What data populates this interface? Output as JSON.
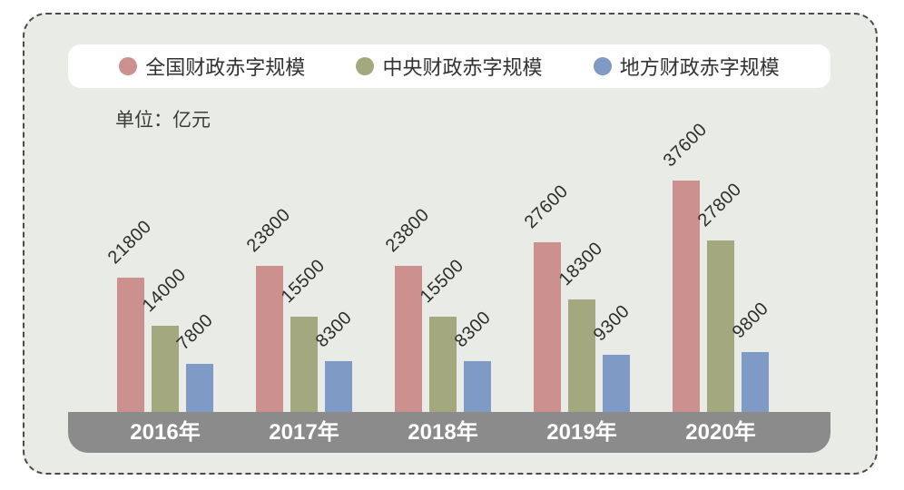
{
  "frame": {
    "background": "#e9ece6",
    "border_color": "#4a4a4a",
    "page_background": "#ffffff"
  },
  "legend": {
    "items": [
      {
        "label": "全国财政赤字规模",
        "color": "#cc918e"
      },
      {
        "label": "中央财政赤字规模",
        "color": "#a4a87e"
      },
      {
        "label": "地方财政赤字规模",
        "color": "#7e9ac5"
      }
    ]
  },
  "unit_label": "单位：亿元",
  "chart_data": {
    "type": "bar",
    "title": "",
    "unit": "亿元",
    "categories": [
      "2016年",
      "2017年",
      "2018年",
      "2019年",
      "2020年"
    ],
    "series": [
      {
        "name": "全国财政赤字规模",
        "color": "#cc918e",
        "values": [
          21800,
          23800,
          23800,
          27600,
          37600
        ]
      },
      {
        "name": "中央财政赤字规模",
        "color": "#a4a87e",
        "values": [
          14000,
          15500,
          15500,
          18300,
          27800
        ]
      },
      {
        "name": "地方财政赤字规模",
        "color": "#7e9ac5",
        "values": [
          7800,
          8300,
          8300,
          9300,
          9800
        ]
      }
    ],
    "ymax": 37600,
    "value_labels_rotated": true,
    "axis_band_color": "#8b8b8b",
    "legend_position": "top",
    "grid": false
  }
}
